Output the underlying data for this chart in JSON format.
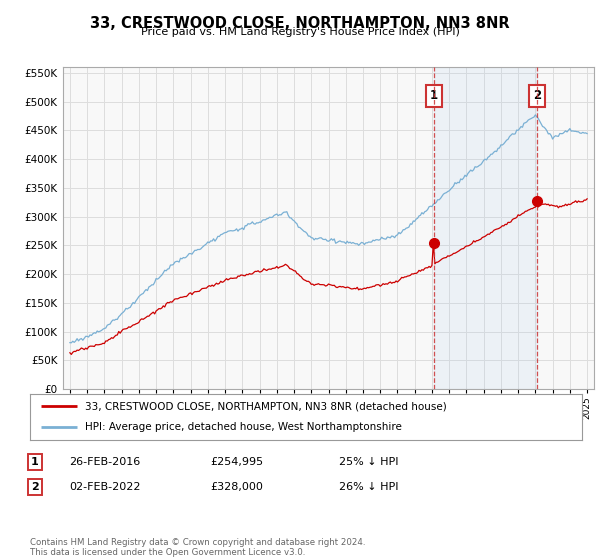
{
  "title": "33, CRESTWOOD CLOSE, NORTHAMPTON, NN3 8NR",
  "subtitle": "Price paid vs. HM Land Registry's House Price Index (HPI)",
  "legend_label_red": "33, CRESTWOOD CLOSE, NORTHAMPTON, NN3 8NR (detached house)",
  "legend_label_blue": "HPI: Average price, detached house, West Northamptonshire",
  "footer": "Contains HM Land Registry data © Crown copyright and database right 2024.\nThis data is licensed under the Open Government Licence v3.0.",
  "annotation1_date": "26-FEB-2016",
  "annotation1_price": "£254,995",
  "annotation1_hpi": "25% ↓ HPI",
  "annotation2_date": "02-FEB-2022",
  "annotation2_price": "£328,000",
  "annotation2_hpi": "26% ↓ HPI",
  "color_red": "#cc0000",
  "color_blue": "#7ab0d4",
  "color_vline": "#cc3333",
  "color_chart_bg": "#f8f8f8",
  "color_grid": "#dddddd",
  "ylim_min": 0,
  "ylim_max": 560000,
  "yticks": [
    0,
    50000,
    100000,
    150000,
    200000,
    250000,
    300000,
    350000,
    400000,
    450000,
    500000,
    550000
  ],
  "years_start": 1995,
  "years_end": 2025,
  "sale1_year": 2016.12,
  "sale2_year": 2022.08,
  "sale1_price": 254995,
  "sale2_price": 328000,
  "xlim_left": 1994.6,
  "xlim_right": 2025.4
}
